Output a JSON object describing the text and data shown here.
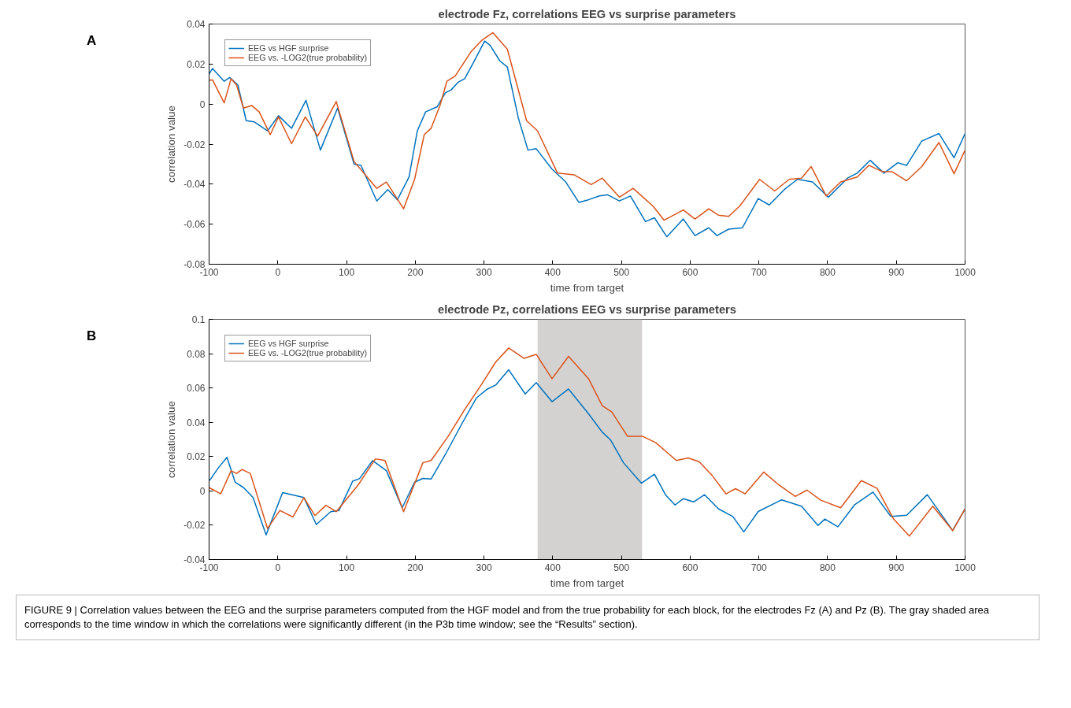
{
  "chart_data": [
    {
      "type": "line",
      "title": "electrode Fz, correlations EEG vs surprise parameters",
      "xlabel": "time from target",
      "ylabel": "correlation value",
      "annotations": [
        "A"
      ],
      "xlim": [
        -100,
        1000
      ],
      "xticks": [
        -100,
        0,
        100,
        200,
        300,
        400,
        500,
        600,
        700,
        800,
        900,
        1000
      ],
      "ylim": [
        -0.08,
        0.04
      ],
      "yticks": [
        -0.08,
        -0.06,
        -0.04,
        -0.02,
        0,
        0.02,
        0.04
      ],
      "grid": false,
      "legend": "top left",
      "series": [
        {
          "name": "EEG vs HGF surprise",
          "color": "#0072bd",
          "x": [
            -100,
            -95,
            -78,
            -70,
            -58,
            -46,
            -34,
            -15,
            1,
            20,
            41,
            62,
            87,
            111,
            121,
            144,
            160,
            174,
            191,
            203,
            215,
            232,
            244,
            252,
            262,
            272,
            285,
            301,
            309,
            323,
            334,
            350,
            364,
            376,
            399,
            419,
            438,
            452,
            468,
            480,
            497,
            513,
            535,
            548,
            566,
            590,
            607,
            627,
            639,
            656,
            676,
            699,
            715,
            737,
            756,
            778,
            801,
            829,
            843,
            862,
            882,
            902,
            915,
            937,
            962,
            984,
            1000
          ],
          "values": [
            0.015,
            0.0178,
            0.0114,
            0.0133,
            0.0095,
            -0.0083,
            -0.0089,
            -0.0134,
            -0.0058,
            -0.0121,
            0.0019,
            -0.023,
            -0.002,
            -0.03,
            -0.0306,
            -0.0484,
            -0.0427,
            -0.0478,
            -0.0364,
            -0.0134,
            -0.0039,
            -0.0013,
            0.0057,
            0.007,
            0.0108,
            0.0127,
            0.021,
            0.0315,
            0.0293,
            0.0216,
            0.0185,
            -0.007,
            -0.023,
            -0.0223,
            -0.0325,
            -0.0389,
            -0.0491,
            -0.0478,
            -0.0459,
            -0.0453,
            -0.0484,
            -0.0459,
            -0.0587,
            -0.0568,
            -0.0663,
            -0.0574,
            -0.0657,
            -0.0618,
            -0.0657,
            -0.0625,
            -0.0618,
            -0.0472,
            -0.0504,
            -0.0427,
            -0.0376,
            -0.0389,
            -0.0465,
            -0.037,
            -0.0345,
            -0.0281,
            -0.0345,
            -0.0293,
            -0.0306,
            -0.0185,
            -0.0147,
            -0.0268,
            -0.0147
          ]
        },
        {
          "name": "EEG vs. -LOG2(true probability)",
          "color": "#d95319",
          "x": [
            -100,
            -95,
            -78,
            -68,
            -60,
            -50,
            -38,
            -27,
            -11,
            1,
            20,
            40,
            58,
            85,
            111,
            130,
            144,
            158,
            183,
            199,
            213,
            223,
            236,
            246,
            258,
            281,
            297,
            313,
            334,
            362,
            378,
            407,
            431,
            456,
            472,
            497,
            517,
            546,
            562,
            590,
            607,
            627,
            641,
            656,
            672,
            701,
            723,
            744,
            762,
            776,
            798,
            819,
            843,
            860,
            880,
            894,
            915,
            937,
            962,
            984,
            1000
          ],
          "values": [
            0.012,
            0.0121,
            0.0006,
            0.0127,
            0.0095,
            -0.002,
            -0.0007,
            -0.0039,
            -0.0153,
            -0.0064,
            -0.0198,
            -0.0064,
            -0.016,
            0.0013,
            -0.0287,
            -0.0364,
            -0.0421,
            -0.0389,
            -0.0523,
            -0.0376,
            -0.0153,
            -0.0121,
            -0.0007,
            0.0114,
            0.014,
            0.0261,
            0.0319,
            0.0357,
            0.0274,
            -0.0083,
            -0.0134,
            -0.0345,
            -0.0353,
            -0.0402,
            -0.037,
            -0.0465,
            -0.0421,
            -0.051,
            -0.058,
            -0.0529,
            -0.0574,
            -0.0523,
            -0.0555,
            -0.0561,
            -0.051,
            -0.0376,
            -0.0434,
            -0.0376,
            -0.037,
            -0.0312,
            -0.0459,
            -0.0389,
            -0.0364,
            -0.0306,
            -0.0338,
            -0.0338,
            -0.0383,
            -0.0312,
            -0.0192,
            -0.0348,
            -0.023
          ]
        }
      ]
    },
    {
      "type": "line",
      "title": "electrode Pz, correlations EEG vs surprise parameters",
      "xlabel": "time from target",
      "ylabel": "correlation value",
      "annotations": [
        "B",
        "FIGURE 9 | Correlation values between the EEG and the surprise parameters computed from the HGF model and from the true probability for each block, for the electrodes Fz (A) and Pz (B). The gray shaded area corresponds to the time window in which the correlations were significantly different (in the P3b time window; see the “Results” section)."
      ],
      "xlim": [
        -100,
        1000
      ],
      "xticks": [
        -100,
        0,
        100,
        200,
        300,
        400,
        500,
        600,
        700,
        800,
        900,
        1000
      ],
      "ylim": [
        -0.04,
        0.1
      ],
      "yticks": [
        -0.04,
        -0.02,
        0,
        0.02,
        0.04,
        0.06,
        0.08,
        0.1
      ],
      "grid": false,
      "legend": "top left",
      "bands": [
        {
          "axis": "x",
          "from": 378,
          "to": 530,
          "color": "#d4d2d0"
        }
      ],
      "series": [
        {
          "name": "EEG vs HGF surprise",
          "color": "#0072bd",
          "x": [
            -100,
            -97,
            -87,
            -74,
            -62,
            -50,
            -36,
            -17,
            7,
            22,
            38,
            56,
            77,
            89,
            109,
            119,
            138,
            158,
            181,
            199,
            211,
            223,
            244,
            268,
            289,
            305,
            317,
            336,
            360,
            376,
            399,
            423,
            452,
            472,
            484,
            503,
            529,
            548,
            564,
            578,
            590,
            605,
            621,
            641,
            662,
            678,
            699,
            733,
            762,
            786,
            796,
            815,
            839,
            866,
            892,
            915,
            945,
            982,
            1000
          ],
          "values": [
            0.006,
            0.0073,
            0.0132,
            0.0196,
            0.005,
            0.002,
            -0.0039,
            -0.0256,
            -0.001,
            -0.0024,
            -0.0039,
            -0.0196,
            -0.0121,
            -0.0114,
            0.0057,
            0.0072,
            0.0177,
            0.0118,
            -0.0098,
            0.0051,
            0.0073,
            0.0069,
            0.0214,
            0.0393,
            0.0542,
            0.0594,
            0.0617,
            0.0706,
            0.0565,
            0.0632,
            0.052,
            0.0594,
            0.045,
            0.0343,
            0.0298,
            0.0164,
            0.0045,
            0.0097,
            -0.0022,
            -0.0082,
            -0.0045,
            -0.0064,
            -0.0022,
            -0.0104,
            -0.0149,
            -0.0239,
            -0.012,
            -0.0052,
            -0.0089,
            -0.0201,
            -0.0164,
            -0.0209,
            -0.0082,
            -0.0007,
            -0.0149,
            -0.0142,
            -0.0022,
            -0.0231,
            -0.0104
          ]
        },
        {
          "name": "EEG vs. -LOG2(true probability)",
          "color": "#d95319",
          "x": [
            -100,
            -97,
            -83,
            -68,
            -60,
            -52,
            -40,
            -15,
            3,
            22,
            38,
            54,
            70,
            85,
            117,
            142,
            156,
            183,
            211,
            223,
            248,
            272,
            297,
            317,
            336,
            358,
            376,
            399,
            423,
            452,
            472,
            486,
            509,
            531,
            550,
            580,
            597,
            613,
            631,
            652,
            666,
            680,
            707,
            729,
            753,
            770,
            790,
            819,
            849,
            872,
            896,
            919,
            953,
            982,
            1000
          ],
          "values": [
            0.002,
            0.0013,
            -0.0017,
            0.0117,
            0.0102,
            0.0125,
            0.0102,
            -0.0219,
            -0.0114,
            -0.0152,
            -0.0039,
            -0.0144,
            -0.0084,
            -0.0121,
            0.0035,
            0.0187,
            0.0177,
            -0.0121,
            0.0164,
            0.0177,
            0.0319,
            0.0475,
            0.0624,
            0.0751,
            0.0833,
            0.0773,
            0.0796,
            0.0654,
            0.0784,
            0.0655,
            0.0497,
            0.046,
            0.0318,
            0.0318,
            0.0281,
            0.0177,
            0.0192,
            0.017,
            0.0095,
            -0.0017,
            0.0013,
            -0.0017,
            0.011,
            0.0035,
            -0.0032,
            0.0005,
            -0.0054,
            -0.0098,
            0.006,
            0.0015,
            -0.0164,
            -0.0263,
            -0.0089,
            -0.0231,
            -0.0104
          ]
        }
      ]
    }
  ]
}
